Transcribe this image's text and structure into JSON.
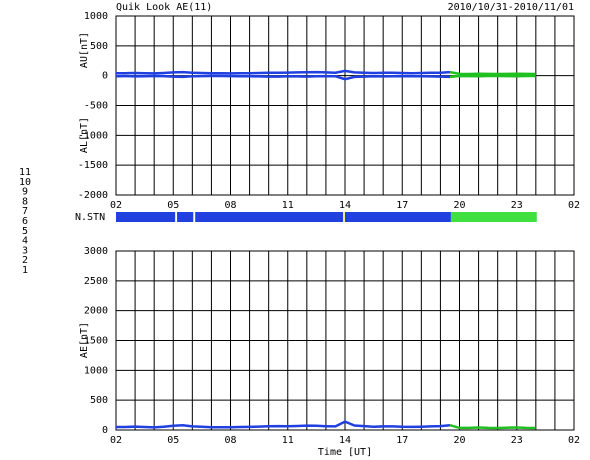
{
  "legend": {
    "levels": [
      11,
      10,
      9,
      8,
      7,
      6,
      5,
      4,
      3,
      2,
      1
    ],
    "colors": [
      "#00e0e0",
      "#ff00ff",
      "#2040e0",
      "#f0f080",
      "#40e040",
      "#ff0000",
      "#c0c0c0",
      "#e8e8e8",
      "#20a0a0",
      "#a040a0",
      "#3030c0"
    ]
  },
  "chart_data": [
    {
      "type": "line",
      "title": "Quik Look AE(11)",
      "subtitle": "2010/10/31-2010/11/01",
      "ylabels": [
        "AU[nT]",
        "AL[nT]"
      ],
      "xlim": [
        0,
        24
      ],
      "xgrid": 1,
      "xticks": [
        {
          "value": 0,
          "label": "02"
        },
        {
          "value": 3,
          "label": "05"
        },
        {
          "value": 6,
          "label": "08"
        },
        {
          "value": 9,
          "label": "11"
        },
        {
          "value": 12,
          "label": "14"
        },
        {
          "value": 15,
          "label": "17"
        },
        {
          "value": 18,
          "label": "20"
        },
        {
          "value": 21,
          "label": "23"
        },
        {
          "value": 24,
          "label": "02"
        }
      ],
      "ylim": [
        -2000,
        1000
      ],
      "yticks": [
        1000,
        500,
        0,
        -500,
        -1000,
        -1500,
        -2000
      ],
      "grid": true,
      "x": [
        0,
        0.5,
        1,
        1.5,
        2,
        2.5,
        3,
        3.5,
        4,
        4.5,
        5,
        5.5,
        6,
        6.5,
        7,
        7.5,
        8,
        8.5,
        9,
        9.5,
        10,
        10.5,
        11,
        11.5,
        12,
        12.5,
        13,
        13.5,
        14,
        14.5,
        15,
        15.5,
        16,
        16.5,
        17,
        17.5,
        18,
        18.5,
        19,
        19.5,
        20,
        20.5,
        21,
        21.5,
        22
      ],
      "series": [
        {
          "color": "#2040e0",
          "values": [
            40,
            42,
            45,
            40,
            38,
            45,
            55,
            60,
            50,
            45,
            42,
            40,
            38,
            40,
            42,
            45,
            48,
            50,
            52,
            55,
            58,
            60,
            55,
            50,
            80,
            55,
            50,
            45,
            48,
            50,
            45,
            42,
            45,
            48,
            50,
            60,
            null,
            null,
            null,
            null,
            null,
            null,
            null,
            null,
            null
          ]
        },
        {
          "color": "#2040e0",
          "values": [
            -10,
            -8,
            -12,
            -10,
            -5,
            -8,
            -15,
            -20,
            -10,
            -8,
            -5,
            -5,
            -8,
            -10,
            -10,
            -12,
            -15,
            -15,
            -10,
            -12,
            -15,
            -10,
            -8,
            -10,
            -60,
            -20,
            -15,
            -10,
            -12,
            -10,
            -8,
            -10,
            -10,
            -12,
            -15,
            -20,
            null,
            null,
            null,
            null,
            null,
            null,
            null,
            null,
            null
          ]
        },
        {
          "color": "#20c020",
          "values": [
            null,
            null,
            null,
            null,
            null,
            null,
            null,
            null,
            null,
            null,
            null,
            null,
            null,
            null,
            null,
            null,
            null,
            null,
            null,
            null,
            null,
            null,
            null,
            null,
            null,
            null,
            null,
            null,
            null,
            null,
            null,
            null,
            null,
            null,
            null,
            60,
            30,
            28,
            32,
            30,
            28,
            30,
            32,
            30,
            28
          ]
        },
        {
          "color": "#20c020",
          "values": [
            null,
            null,
            null,
            null,
            null,
            null,
            null,
            null,
            null,
            null,
            null,
            null,
            null,
            null,
            null,
            null,
            null,
            null,
            null,
            null,
            null,
            null,
            null,
            null,
            null,
            null,
            null,
            null,
            null,
            null,
            null,
            null,
            null,
            null,
            null,
            -20,
            -5,
            -8,
            -10,
            -6,
            -5,
            -8,
            -10,
            -6,
            -5
          ]
        }
      ]
    },
    {
      "type": "timeline",
      "label": "N.STN",
      "xlim": [
        0,
        24
      ],
      "segments": [
        {
          "start": 0,
          "end": 3.1,
          "level": 9
        },
        {
          "start": 3.2,
          "end": 4.05,
          "level": 9
        },
        {
          "start": 4.15,
          "end": 11.9,
          "level": 9
        },
        {
          "start": 11.9,
          "end": 12.0,
          "level": 8
        },
        {
          "start": 12.0,
          "end": 17.55,
          "level": 9
        },
        {
          "start": 17.55,
          "end": 22.05,
          "level": 7
        }
      ]
    },
    {
      "type": "line",
      "ylabels": [
        "AE[nT]"
      ],
      "xlabel": "Time [UT]",
      "xlim": [
        0,
        24
      ],
      "xgrid": 1,
      "xticks": [
        {
          "value": 0,
          "label": "02"
        },
        {
          "value": 3,
          "label": "05"
        },
        {
          "value": 6,
          "label": "08"
        },
        {
          "value": 9,
          "label": "11"
        },
        {
          "value": 12,
          "label": "14"
        },
        {
          "value": 15,
          "label": "17"
        },
        {
          "value": 18,
          "label": "20"
        },
        {
          "value": 21,
          "label": "23"
        },
        {
          "value": 24,
          "label": "02"
        }
      ],
      "ylim": [
        0,
        3000
      ],
      "yticks": [
        3000,
        2500,
        2000,
        1500,
        1000,
        500,
        0
      ],
      "grid": true,
      "x": [
        0,
        0.5,
        1,
        1.5,
        2,
        2.5,
        3,
        3.5,
        4,
        4.5,
        5,
        5.5,
        6,
        6.5,
        7,
        7.5,
        8,
        8.5,
        9,
        9.5,
        10,
        10.5,
        11,
        11.5,
        12,
        12.5,
        13,
        13.5,
        14,
        14.5,
        15,
        15.5,
        16,
        16.5,
        17,
        17.5,
        18,
        18.5,
        19,
        19.5,
        20,
        20.5,
        21,
        21.5,
        22
      ],
      "series": [
        {
          "color": "#2040e0",
          "values": [
            50,
            50,
            57,
            50,
            43,
            53,
            70,
            80,
            60,
            53,
            47,
            45,
            46,
            50,
            52,
            57,
            63,
            65,
            62,
            67,
            73,
            70,
            63,
            60,
            140,
            75,
            65,
            55,
            60,
            60,
            53,
            52,
            55,
            60,
            65,
            80,
            null,
            null,
            null,
            null,
            null,
            null,
            null,
            null,
            null
          ]
        },
        {
          "color": "#20c020",
          "values": [
            null,
            null,
            null,
            null,
            null,
            null,
            null,
            null,
            null,
            null,
            null,
            null,
            null,
            null,
            null,
            null,
            null,
            null,
            null,
            null,
            null,
            null,
            null,
            null,
            null,
            null,
            null,
            null,
            null,
            null,
            null,
            null,
            null,
            null,
            null,
            80,
            35,
            36,
            42,
            36,
            33,
            38,
            42,
            36,
            33
          ]
        }
      ]
    }
  ]
}
